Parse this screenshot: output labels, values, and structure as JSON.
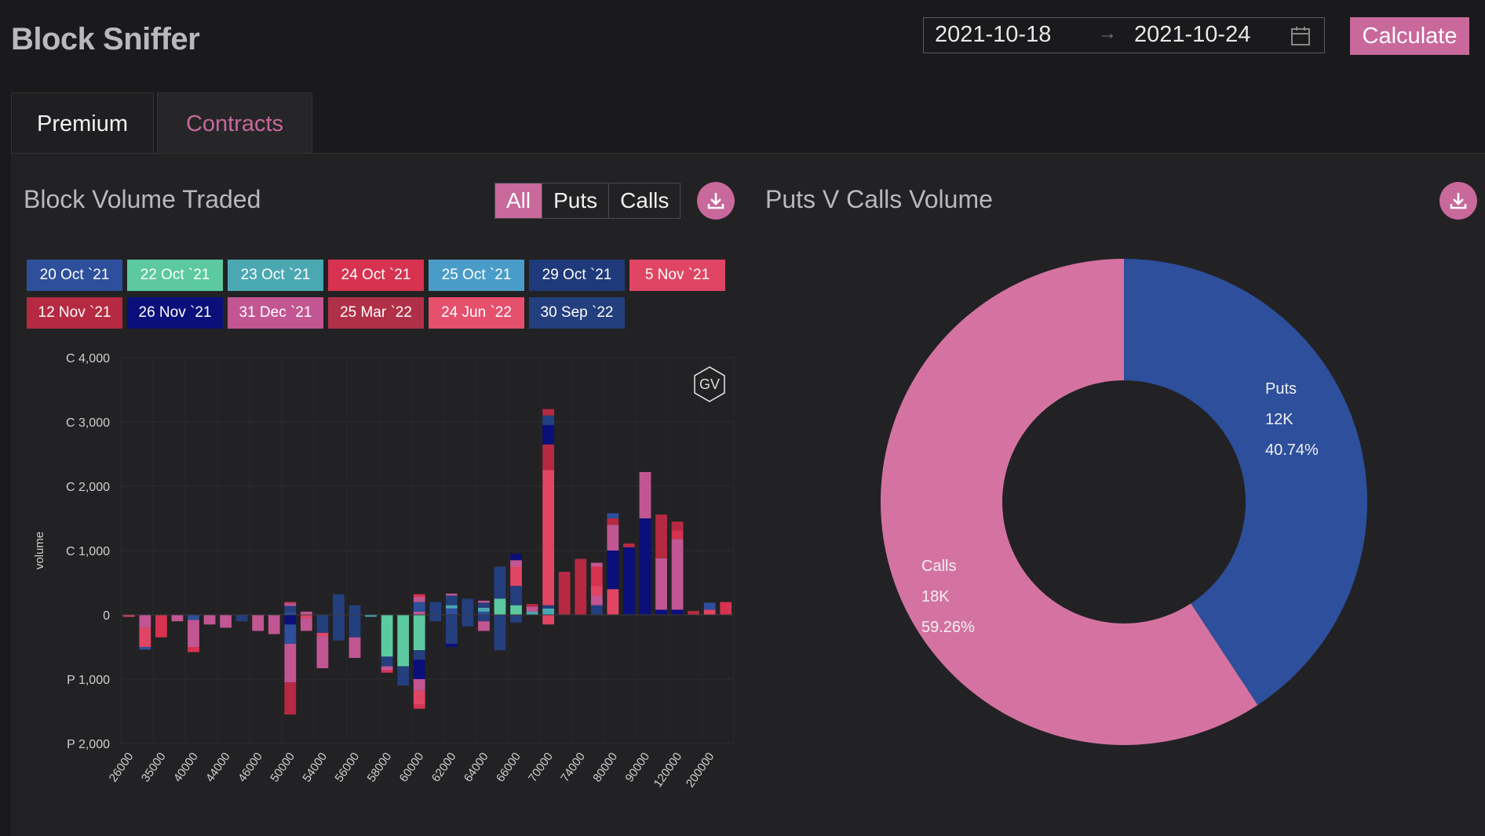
{
  "app": {
    "title": "Block Sniffer"
  },
  "date_range": {
    "start": "2021-10-18",
    "end": "2021-10-24"
  },
  "calculate_label": "Calculate",
  "tabs": [
    {
      "label": "Premium",
      "active": false
    },
    {
      "label": "Contracts",
      "active": true
    }
  ],
  "block_volume": {
    "title": "Block Volume Traded",
    "filters": [
      {
        "label": "All",
        "active": true
      },
      {
        "label": "Puts",
        "active": false
      },
      {
        "label": "Calls",
        "active": false
      }
    ],
    "badge": "GV",
    "legend": [
      {
        "label": "20 Oct `21",
        "color": "#2d4f9c"
      },
      {
        "label": "22 Oct `21",
        "color": "#5cc9a0"
      },
      {
        "label": "23 Oct `21",
        "color": "#4aa8b3"
      },
      {
        "label": "24 Oct `21",
        "color": "#d7324f"
      },
      {
        "label": "25 Oct `21",
        "color": "#4a9cc8"
      },
      {
        "label": "29 Oct `21",
        "color": "#1e3a7a"
      },
      {
        "label": "5 Nov `21",
        "color": "#e04563"
      },
      {
        "label": "12 Nov `21",
        "color": "#b52a42"
      },
      {
        "label": "26 Nov `21",
        "color": "#0b0f7a"
      },
      {
        "label": "31 Dec `21",
        "color": "#c25692"
      },
      {
        "label": "25 Mar `22",
        "color": "#b03048"
      },
      {
        "label": "24 Jun `22",
        "color": "#e5506c"
      },
      {
        "label": "30 Sep `22",
        "color": "#243f7d"
      }
    ]
  },
  "puts_calls": {
    "title": "Puts V Calls Volume"
  },
  "chart_data": [
    {
      "type": "bar",
      "stacked": true,
      "ylabel": "volume",
      "ylim": [
        -2000,
        4000
      ],
      "y_ticks": [
        "C 4,000",
        "C 3,000",
        "C 2,000",
        "C 1,000",
        "0",
        "P 1,000",
        "P 2,000"
      ],
      "x_tick_labels": [
        "26000",
        "35000",
        "40000",
        "44000",
        "46000",
        "50000",
        "54000",
        "56000",
        "58000",
        "60000",
        "62000",
        "64000",
        "66000",
        "70000",
        "74000",
        "80000",
        "90000",
        "120000",
        "200000"
      ],
      "bars": [
        {
          "segs": [
            [
              -30,
              "#e04563"
            ]
          ]
        },
        {
          "segs": [
            [
              -200,
              "#c25692"
            ],
            [
              -300,
              "#e04563"
            ],
            [
              -40,
              "#2d4f9c"
            ]
          ]
        },
        {
          "segs": [
            [
              -350,
              "#d7324f"
            ]
          ]
        },
        {
          "segs": [
            [
              -100,
              "#c25692"
            ]
          ]
        },
        {
          "segs": [
            [
              -80,
              "#2d4f9c"
            ],
            [
              -420,
              "#c25692"
            ],
            [
              -80,
              "#d7324f"
            ]
          ]
        },
        {
          "segs": [
            [
              -150,
              "#c25692"
            ]
          ]
        },
        {
          "segs": [
            [
              -200,
              "#c25692"
            ]
          ]
        },
        {
          "segs": [
            [
              -100,
              "#243f7d"
            ]
          ]
        },
        {
          "segs": [
            [
              -250,
              "#c25692"
            ]
          ]
        },
        {
          "segs": [
            [
              -300,
              "#c25692"
            ]
          ]
        },
        {
          "segs": [
            [
              40,
              "#2d4f9c"
            ],
            [
              100,
              "#243f7d"
            ],
            [
              40,
              "#c25692"
            ],
            [
              20,
              "#d7324f"
            ],
            [
              -150,
              "#0b0f7a"
            ],
            [
              -300,
              "#2d4f9c"
            ],
            [
              -600,
              "#c25692"
            ],
            [
              -500,
              "#b52a42"
            ]
          ]
        },
        {
          "segs": [
            [
              50,
              "#c25692"
            ],
            [
              -50,
              "#e04563"
            ],
            [
              -200,
              "#c25692"
            ]
          ]
        },
        {
          "segs": [
            [
              -280,
              "#243f7d"
            ],
            [
              -50,
              "#e04563"
            ],
            [
              -500,
              "#c25692"
            ]
          ]
        },
        {
          "segs": [
            [
              320,
              "#243f7d"
            ],
            [
              -400,
              "#243f7d"
            ]
          ]
        },
        {
          "segs": [
            [
              150,
              "#243f7d"
            ],
            [
              -350,
              "#243f7d"
            ],
            [
              -320,
              "#c25692"
            ]
          ]
        },
        {
          "segs": [
            [
              -30,
              "#4aa8b3"
            ]
          ]
        },
        {
          "segs": [
            [
              -650,
              "#5cc9a0"
            ],
            [
              -150,
              "#243f7d"
            ],
            [
              -60,
              "#c25692"
            ],
            [
              -40,
              "#d7324f"
            ]
          ]
        },
        {
          "segs": [
            [
              -800,
              "#5cc9a0"
            ],
            [
              -300,
              "#243f7d"
            ]
          ]
        },
        {
          "segs": [
            [
              -550,
              "#5cc9a0"
            ],
            [
              -150,
              "#243f7d"
            ],
            [
              -300,
              "#0b0f7a"
            ],
            [
              -180,
              "#c25692"
            ],
            [
              -100,
              "#e04563"
            ],
            [
              -120,
              "#e04563"
            ],
            [
              -60,
              "#d7324f"
            ],
            [
              50,
              "#c25692"
            ],
            [
              150,
              "#2d4f9c"
            ],
            [
              80,
              "#c25692"
            ],
            [
              40,
              "#d7324f"
            ]
          ]
        },
        {
          "segs": [
            [
              200,
              "#243f7d"
            ],
            [
              -100,
              "#243f7d"
            ]
          ]
        },
        {
          "segs": [
            [
              100,
              "#2d4f9c"
            ],
            [
              50,
              "#4aa8b3"
            ],
            [
              150,
              "#243f7d"
            ],
            [
              30,
              "#c25692"
            ],
            [
              -200,
              "#243f7d"
            ],
            [
              -250,
              "#243f7d"
            ],
            [
              -50,
              "#0b0f7a"
            ]
          ]
        },
        {
          "segs": [
            [
              250,
              "#243f7d"
            ],
            [
              -180,
              "#243f7d"
            ]
          ]
        },
        {
          "segs": [
            [
              50,
              "#2d4f9c"
            ],
            [
              60,
              "#4aa8b3"
            ],
            [
              80,
              "#243f7d"
            ],
            [
              30,
              "#c25692"
            ],
            [
              -100,
              "#243f7d"
            ],
            [
              -150,
              "#c25692"
            ]
          ]
        },
        {
          "segs": [
            [
              250,
              "#5cc9a0"
            ],
            [
              500,
              "#243f7d"
            ],
            [
              -400,
              "#243f7d"
            ],
            [
              -150,
              "#243f7d"
            ]
          ]
        },
        {
          "segs": [
            [
              150,
              "#5cc9a0"
            ],
            [
              300,
              "#243f7d"
            ],
            [
              300,
              "#e04563"
            ],
            [
              100,
              "#c25692"
            ],
            [
              100,
              "#0b0f7a"
            ],
            [
              -120,
              "#243f7d"
            ]
          ]
        },
        {
          "segs": [
            [
              50,
              "#4aa8b3"
            ],
            [
              80,
              "#c25692"
            ],
            [
              40,
              "#b52a42"
            ]
          ]
        },
        {
          "segs": [
            [
              100,
              "#4aa8b3"
            ],
            [
              50,
              "#243f7d"
            ],
            [
              2100,
              "#e04563"
            ],
            [
              400,
              "#b52a42"
            ],
            [
              300,
              "#0b0f7a"
            ],
            [
              150,
              "#243f7d"
            ],
            [
              100,
              "#b52a42"
            ],
            [
              -150,
              "#e04563"
            ]
          ]
        },
        {
          "segs": [
            [
              670,
              "#b52a42"
            ]
          ]
        },
        {
          "segs": [
            [
              870,
              "#b52a42"
            ]
          ]
        },
        {
          "segs": [
            [
              150,
              "#243f7d"
            ],
            [
              150,
              "#c25692"
            ],
            [
              150,
              "#e04563"
            ],
            [
              300,
              "#d7324f"
            ],
            [
              60,
              "#c25692"
            ]
          ]
        },
        {
          "segs": [
            [
              400,
              "#e04563"
            ],
            [
              600,
              "#0b0f7a"
            ],
            [
              400,
              "#c25692"
            ],
            [
              100,
              "#b52a42"
            ],
            [
              80,
              "#2d4f9c"
            ]
          ]
        },
        {
          "segs": [
            [
              1050,
              "#0b0f7a"
            ],
            [
              60,
              "#b52a42"
            ]
          ]
        },
        {
          "segs": [
            [
              1500,
              "#0b0f7a"
            ],
            [
              720,
              "#c25692"
            ]
          ]
        },
        {
          "segs": [
            [
              80,
              "#0b0f7a"
            ],
            [
              800,
              "#c25692"
            ],
            [
              680,
              "#b52a42"
            ]
          ]
        },
        {
          "segs": [
            [
              80,
              "#0b0f7a"
            ],
            [
              1100,
              "#c25692"
            ],
            [
              130,
              "#d7324f"
            ],
            [
              140,
              "#b52a42"
            ]
          ]
        },
        {
          "segs": [
            [
              60,
              "#b52a42"
            ]
          ]
        },
        {
          "segs": [
            [
              80,
              "#e04563"
            ],
            [
              110,
              "#2d4f9c"
            ]
          ]
        },
        {
          "segs": [
            [
              200,
              "#d7324f"
            ]
          ]
        }
      ]
    },
    {
      "type": "pie",
      "donut": true,
      "slices": [
        {
          "label": "Puts",
          "display": "12K",
          "percent": 40.74,
          "percent_text": "40.74%",
          "color": "#2d4f9c"
        },
        {
          "label": "Calls",
          "display": "18K",
          "percent": 59.26,
          "percent_text": "59.26%",
          "color": "#d473a2"
        }
      ]
    }
  ]
}
